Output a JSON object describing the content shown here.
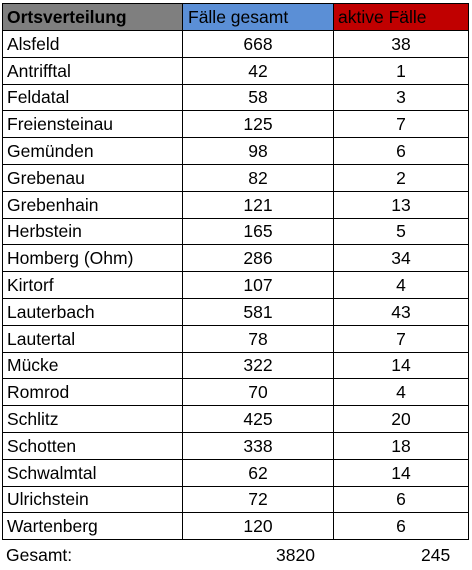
{
  "table": {
    "headers": {
      "place": "Ortsverteilung",
      "total": "Fälle gesamt",
      "active": "aktive Fälle"
    },
    "rows": [
      {
        "place": "Alsfeld",
        "total": "668",
        "active": "38"
      },
      {
        "place": "Antrifftal",
        "total": "42",
        "active": "1"
      },
      {
        "place": "Feldatal",
        "total": "58",
        "active": "3"
      },
      {
        "place": "Freiensteinau",
        "total": "125",
        "active": "7"
      },
      {
        "place": "Gemünden",
        "total": "98",
        "active": "6"
      },
      {
        "place": "Grebenau",
        "total": "82",
        "active": "2"
      },
      {
        "place": "Grebenhain",
        "total": "121",
        "active": "13"
      },
      {
        "place": "Herbstein",
        "total": "165",
        "active": "5"
      },
      {
        "place": "Homberg (Ohm)",
        "total": "286",
        "active": "34"
      },
      {
        "place": "Kirtorf",
        "total": "107",
        "active": "4"
      },
      {
        "place": "Lauterbach",
        "total": "581",
        "active": "43"
      },
      {
        "place": "Lautertal",
        "total": "78",
        "active": "7"
      },
      {
        "place": "Mücke",
        "total": "322",
        "active": "14"
      },
      {
        "place": "Romrod",
        "total": "70",
        "active": "4"
      },
      {
        "place": "Schlitz",
        "total": "425",
        "active": "20"
      },
      {
        "place": "Schotten",
        "total": "338",
        "active": "18"
      },
      {
        "place": "Schwalmtal",
        "total": "62",
        "active": "14"
      },
      {
        "place": "Ulrichstein",
        "total": "72",
        "active": "6"
      },
      {
        "place": "Wartenberg",
        "total": "120",
        "active": "6"
      }
    ]
  },
  "summary": {
    "label": "Gesamt:",
    "total": "3820",
    "active": "245"
  },
  "colors": {
    "header_place": "#7f7f7f",
    "header_total": "#5b8fd6",
    "header_active": "#c00000"
  }
}
